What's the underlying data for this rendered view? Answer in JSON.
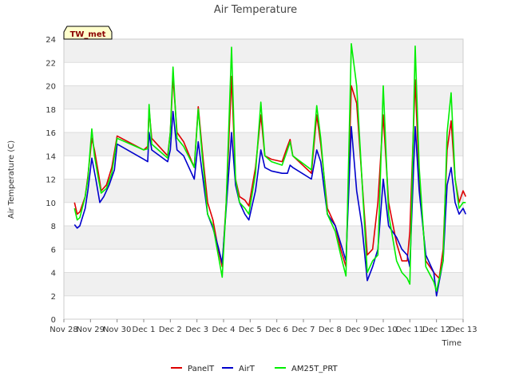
{
  "chart_data": {
    "type": "line",
    "title": "Air Temperature",
    "xlabel": "Time",
    "ylabel": "Air Temperature (C)",
    "site_badge": "TW_met",
    "grid": "horizontal bands",
    "legend_position": "bottom-center",
    "ylim": [
      0,
      24
    ],
    "yticks": [
      0,
      2,
      4,
      6,
      8,
      10,
      12,
      14,
      16,
      18,
      20,
      22,
      24
    ],
    "xlim": [
      0,
      15
    ],
    "xticks": [
      {
        "value": 0,
        "label": "Nov 28"
      },
      {
        "value": 1,
        "label": "Nov 29"
      },
      {
        "value": 2,
        "label": "Nov 30"
      },
      {
        "value": 3,
        "label": "Dec 1"
      },
      {
        "value": 4,
        "label": "Dec 2"
      },
      {
        "value": 5,
        "label": "Dec 3"
      },
      {
        "value": 6,
        "label": "Dec 4"
      },
      {
        "value": 7,
        "label": "Dec 5"
      },
      {
        "value": 8,
        "label": "Dec 6"
      },
      {
        "value": 9,
        "label": "Dec 7"
      },
      {
        "value": 10,
        "label": "Dec 8"
      },
      {
        "value": 11,
        "label": "Dec 9"
      },
      {
        "value": 12,
        "label": "Dec 10"
      },
      {
        "value": 13,
        "label": "Dec 11"
      },
      {
        "value": 14,
        "label": "Dec 12"
      },
      {
        "value": 15,
        "label": "Dec 13"
      }
    ],
    "series": [
      {
        "name": "PanelT",
        "color": "#dd0000",
        "points": [
          [
            0.4,
            10.0
          ],
          [
            0.5,
            9.0
          ],
          [
            0.6,
            9.2
          ],
          [
            0.8,
            10.5
          ],
          [
            0.9,
            12.2
          ],
          [
            1.05,
            15.5
          ],
          [
            1.15,
            14.5
          ],
          [
            1.3,
            12.5
          ],
          [
            1.4,
            11.0
          ],
          [
            1.6,
            11.5
          ],
          [
            1.8,
            13.0
          ],
          [
            2.0,
            15.7
          ],
          [
            3.0,
            14.5
          ],
          [
            3.15,
            14.8
          ],
          [
            3.2,
            18.0
          ],
          [
            3.3,
            15.5
          ],
          [
            3.9,
            14.0
          ],
          [
            4.0,
            16.0
          ],
          [
            4.1,
            20.8
          ],
          [
            4.25,
            16.0
          ],
          [
            4.5,
            15.2
          ],
          [
            4.9,
            13.0
          ],
          [
            5.05,
            18.2
          ],
          [
            5.2,
            14.5
          ],
          [
            5.4,
            10.0
          ],
          [
            5.6,
            8.5
          ],
          [
            5.8,
            6.0
          ],
          [
            5.95,
            4.5
          ],
          [
            6.1,
            10.0
          ],
          [
            6.3,
            20.8
          ],
          [
            6.45,
            12.0
          ],
          [
            6.6,
            10.5
          ],
          [
            6.8,
            10.2
          ],
          [
            6.95,
            9.7
          ],
          [
            7.2,
            13.0
          ],
          [
            7.4,
            17.5
          ],
          [
            7.55,
            14.0
          ],
          [
            7.8,
            13.7
          ],
          [
            8.2,
            13.5
          ],
          [
            8.4,
            14.8
          ],
          [
            8.5,
            15.4
          ],
          [
            8.6,
            14.0
          ],
          [
            9.3,
            12.5
          ],
          [
            9.5,
            17.5
          ],
          [
            9.65,
            15.0
          ],
          [
            9.9,
            9.5
          ],
          [
            10.2,
            8.0
          ],
          [
            10.4,
            6.0
          ],
          [
            10.6,
            4.5
          ],
          [
            10.8,
            20.0
          ],
          [
            11.0,
            18.5
          ],
          [
            11.2,
            12.0
          ],
          [
            11.4,
            5.5
          ],
          [
            11.6,
            6.0
          ],
          [
            11.8,
            10.0
          ],
          [
            12.0,
            17.5
          ],
          [
            12.2,
            10.0
          ],
          [
            12.5,
            6.5
          ],
          [
            12.7,
            5.0
          ],
          [
            12.9,
            5.0
          ],
          [
            13.0,
            7.5
          ],
          [
            13.2,
            20.5
          ],
          [
            13.35,
            12.0
          ],
          [
            13.6,
            5.0
          ],
          [
            13.9,
            4.0
          ],
          [
            14.1,
            3.5
          ],
          [
            14.25,
            6.0
          ],
          [
            14.4,
            14.5
          ],
          [
            14.55,
            17.0
          ],
          [
            14.7,
            12.0
          ],
          [
            14.85,
            10.0
          ],
          [
            15.0,
            11.0
          ],
          [
            15.1,
            10.5
          ]
        ]
      },
      {
        "name": "AirT",
        "color": "#0000cc",
        "points": [
          [
            0.4,
            8.1
          ],
          [
            0.5,
            7.8
          ],
          [
            0.6,
            8.0
          ],
          [
            0.8,
            9.5
          ],
          [
            0.9,
            11.0
          ],
          [
            1.05,
            13.8
          ],
          [
            1.2,
            12.0
          ],
          [
            1.35,
            10.0
          ],
          [
            1.5,
            10.5
          ],
          [
            1.7,
            11.5
          ],
          [
            1.9,
            12.8
          ],
          [
            2.0,
            15.0
          ],
          [
            3.0,
            13.7
          ],
          [
            3.15,
            13.5
          ],
          [
            3.2,
            16.0
          ],
          [
            3.3,
            14.5
          ],
          [
            3.9,
            13.5
          ],
          [
            4.0,
            14.5
          ],
          [
            4.1,
            17.8
          ],
          [
            4.25,
            14.5
          ],
          [
            4.5,
            14.0
          ],
          [
            4.9,
            12.0
          ],
          [
            5.05,
            15.2
          ],
          [
            5.2,
            12.5
          ],
          [
            5.4,
            9.0
          ],
          [
            5.6,
            7.8
          ],
          [
            5.8,
            6.2
          ],
          [
            5.95,
            4.8
          ],
          [
            6.1,
            9.5
          ],
          [
            6.3,
            16.0
          ],
          [
            6.45,
            11.5
          ],
          [
            6.6,
            10.0
          ],
          [
            6.8,
            9.0
          ],
          [
            6.95,
            8.5
          ],
          [
            7.2,
            11.0
          ],
          [
            7.4,
            14.5
          ],
          [
            7.55,
            13.0
          ],
          [
            7.8,
            12.7
          ],
          [
            8.2,
            12.5
          ],
          [
            8.4,
            12.5
          ],
          [
            8.5,
            13.2
          ],
          [
            8.6,
            13.0
          ],
          [
            9.3,
            12.0
          ],
          [
            9.5,
            14.5
          ],
          [
            9.65,
            13.5
          ],
          [
            9.9,
            9.0
          ],
          [
            10.2,
            8.0
          ],
          [
            10.4,
            6.5
          ],
          [
            10.6,
            5.0
          ],
          [
            10.8,
            16.5
          ],
          [
            11.0,
            11.0
          ],
          [
            11.2,
            8.0
          ],
          [
            11.4,
            3.3
          ],
          [
            11.6,
            4.5
          ],
          [
            11.8,
            6.0
          ],
          [
            12.0,
            12.0
          ],
          [
            12.2,
            8.0
          ],
          [
            12.5,
            7.0
          ],
          [
            12.7,
            6.0
          ],
          [
            12.9,
            5.5
          ],
          [
            13.0,
            4.5
          ],
          [
            13.2,
            16.5
          ],
          [
            13.35,
            11.0
          ],
          [
            13.6,
            5.5
          ],
          [
            13.9,
            4.0
          ],
          [
            14.0,
            2.0
          ],
          [
            14.25,
            5.0
          ],
          [
            14.4,
            11.5
          ],
          [
            14.55,
            13.0
          ],
          [
            14.7,
            10.0
          ],
          [
            14.85,
            9.0
          ],
          [
            15.0,
            9.5
          ],
          [
            15.1,
            9.0
          ]
        ]
      },
      {
        "name": "AM25T_PRT",
        "color": "#00ee00",
        "points": [
          [
            0.4,
            9.5
          ],
          [
            0.5,
            8.5
          ],
          [
            0.6,
            8.7
          ],
          [
            0.8,
            10.5
          ],
          [
            0.9,
            12.0
          ],
          [
            1.05,
            16.3
          ],
          [
            1.15,
            14.0
          ],
          [
            1.3,
            12.0
          ],
          [
            1.4,
            10.8
          ],
          [
            1.6,
            11.2
          ],
          [
            1.8,
            12.5
          ],
          [
            2.0,
            15.5
          ],
          [
            3.0,
            14.5
          ],
          [
            3.15,
            14.6
          ],
          [
            3.2,
            18.4
          ],
          [
            3.3,
            15.0
          ],
          [
            3.9,
            13.8
          ],
          [
            4.0,
            16.0
          ],
          [
            4.1,
            21.6
          ],
          [
            4.25,
            15.5
          ],
          [
            4.5,
            14.8
          ],
          [
            4.9,
            13.0
          ],
          [
            5.05,
            18.0
          ],
          [
            5.2,
            14.0
          ],
          [
            5.4,
            9.0
          ],
          [
            5.6,
            8.0
          ],
          [
            5.8,
            5.5
          ],
          [
            5.95,
            3.6
          ],
          [
            6.1,
            10.0
          ],
          [
            6.3,
            23.3
          ],
          [
            6.45,
            12.0
          ],
          [
            6.6,
            10.0
          ],
          [
            6.8,
            9.5
          ],
          [
            6.95,
            9.0
          ],
          [
            7.2,
            12.5
          ],
          [
            7.4,
            18.6
          ],
          [
            7.55,
            14.0
          ],
          [
            7.8,
            13.5
          ],
          [
            8.2,
            13.2
          ],
          [
            8.4,
            14.5
          ],
          [
            8.5,
            15.2
          ],
          [
            8.6,
            14.0
          ],
          [
            9.3,
            12.8
          ],
          [
            9.5,
            18.3
          ],
          [
            9.65,
            15.5
          ],
          [
            9.9,
            9.0
          ],
          [
            10.2,
            7.5
          ],
          [
            10.4,
            5.5
          ],
          [
            10.6,
            3.7
          ],
          [
            10.8,
            23.6
          ],
          [
            11.0,
            20.0
          ],
          [
            11.2,
            12.0
          ],
          [
            11.4,
            4.0
          ],
          [
            11.6,
            5.0
          ],
          [
            11.8,
            5.5
          ],
          [
            12.0,
            20.0
          ],
          [
            12.2,
            9.0
          ],
          [
            12.5,
            5.0
          ],
          [
            12.7,
            4.0
          ],
          [
            12.9,
            3.5
          ],
          [
            13.0,
            3.0
          ],
          [
            13.2,
            23.4
          ],
          [
            13.35,
            13.0
          ],
          [
            13.6,
            4.5
          ],
          [
            13.9,
            3.2
          ],
          [
            14.0,
            2.4
          ],
          [
            14.25,
            5.0
          ],
          [
            14.4,
            16.0
          ],
          [
            14.55,
            19.4
          ],
          [
            14.7,
            12.0
          ],
          [
            14.85,
            9.5
          ],
          [
            15.0,
            10.0
          ],
          [
            15.1,
            10.0
          ]
        ]
      }
    ]
  }
}
